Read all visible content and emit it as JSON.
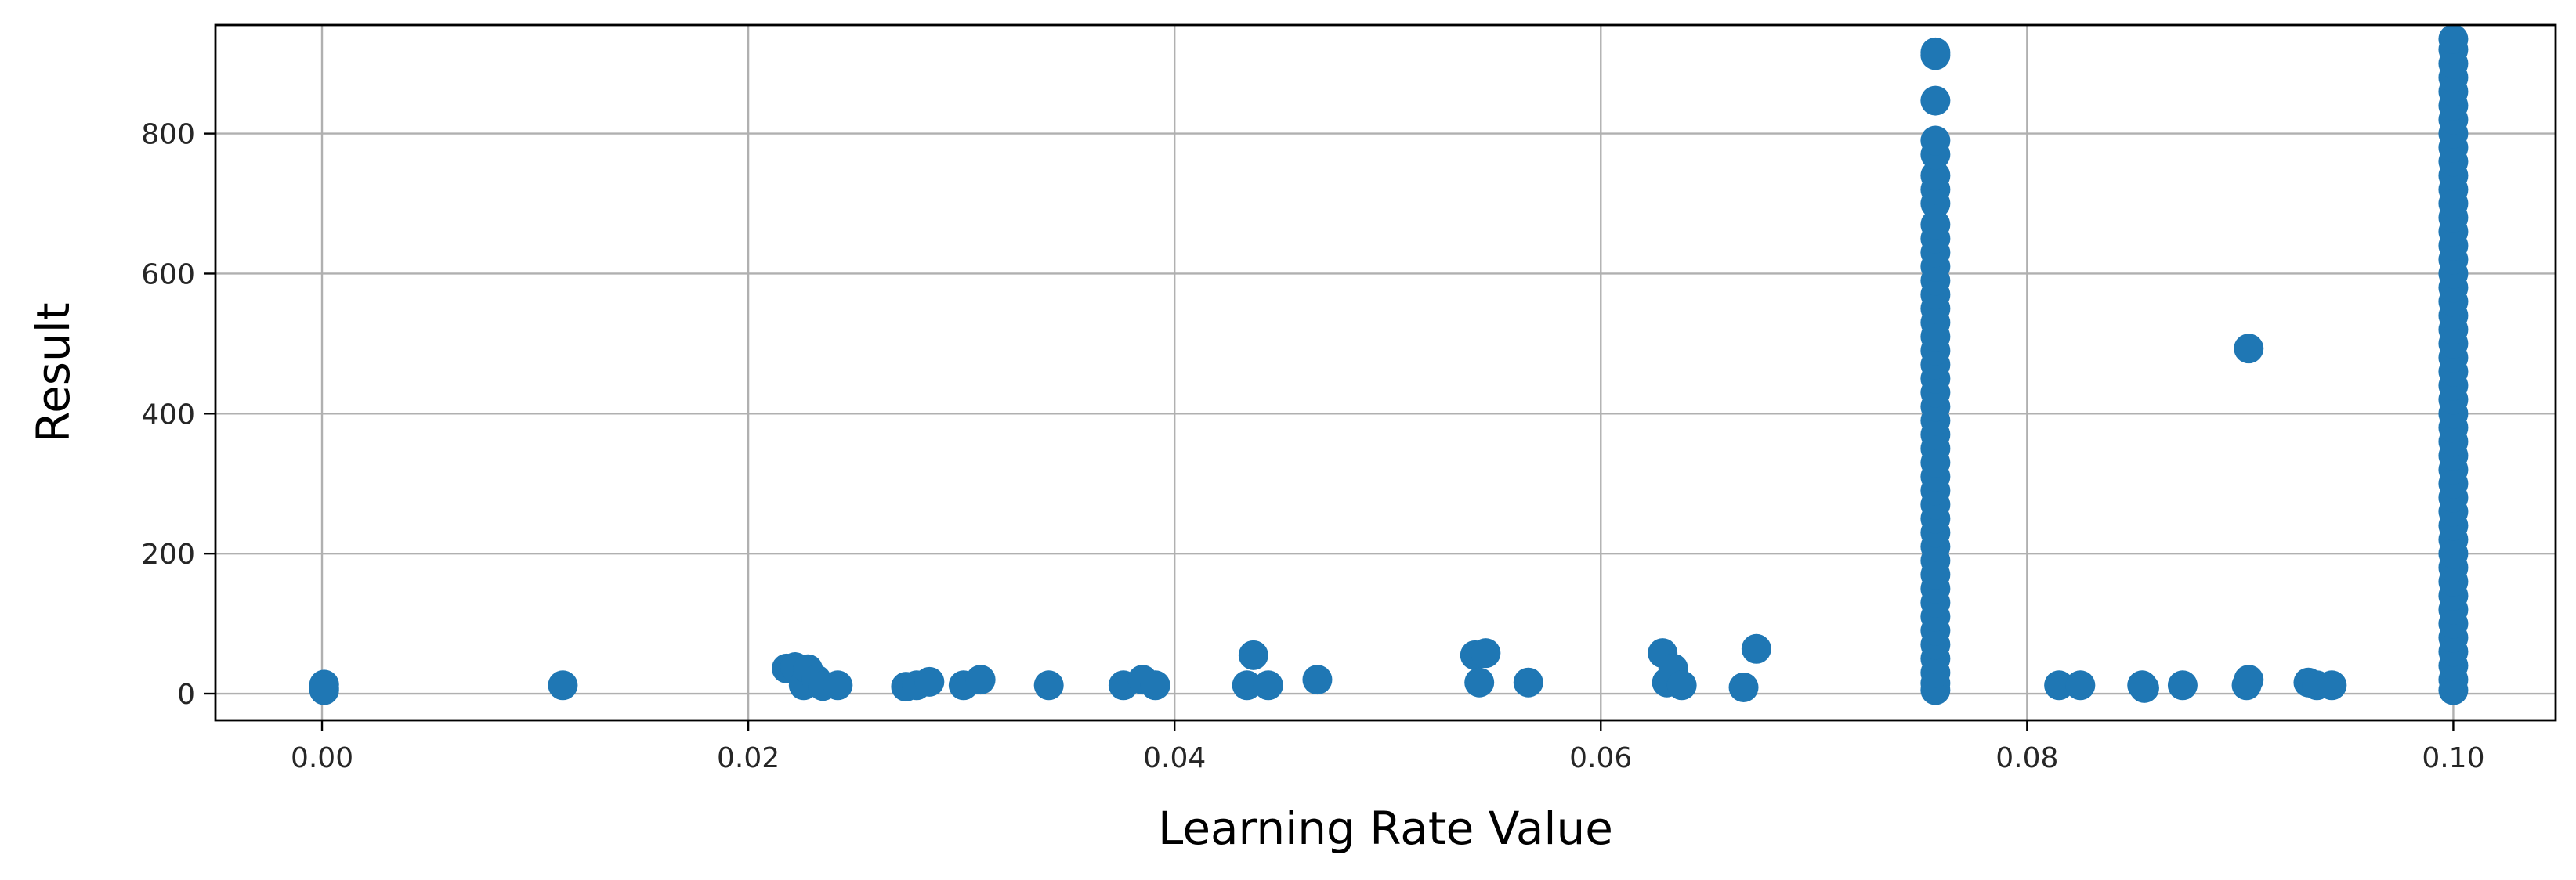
{
  "chart_data": {
    "type": "scatter",
    "title": "",
    "xlabel": "Learning Rate Value",
    "ylabel": "Result",
    "xlim": [
      -0.005,
      0.1048
    ],
    "ylim": [
      -38,
      955
    ],
    "xticks": [
      0.0,
      0.02,
      0.04,
      0.06,
      0.08,
      0.1
    ],
    "xtick_labels": [
      "0.00",
      "0.02",
      "0.04",
      "0.06",
      "0.08",
      "0.10"
    ],
    "yticks": [
      0,
      200,
      400,
      600,
      800
    ],
    "ytick_labels": [
      "0",
      "200",
      "400",
      "600",
      "800"
    ],
    "grid": true,
    "legend": "none",
    "marker_color": "#1f77b4",
    "series": [
      {
        "points": [
          [
            0.0001,
            8
          ],
          [
            0.0001,
            13
          ],
          [
            0.0001,
            5
          ],
          [
            0.0113,
            12
          ],
          [
            0.0218,
            36
          ],
          [
            0.0222,
            38
          ],
          [
            0.0226,
            12
          ],
          [
            0.0228,
            35
          ],
          [
            0.0232,
            20
          ],
          [
            0.0235,
            11
          ],
          [
            0.0242,
            12
          ],
          [
            0.0274,
            10
          ],
          [
            0.0279,
            12
          ],
          [
            0.0285,
            17
          ],
          [
            0.0301,
            12
          ],
          [
            0.0309,
            20
          ],
          [
            0.0341,
            12
          ],
          [
            0.0376,
            12
          ],
          [
            0.0385,
            20
          ],
          [
            0.0391,
            12
          ],
          [
            0.0434,
            12
          ],
          [
            0.0437,
            55
          ],
          [
            0.0444,
            12
          ],
          [
            0.0467,
            20
          ],
          [
            0.0541,
            55
          ],
          [
            0.0543,
            16
          ],
          [
            0.0546,
            58
          ],
          [
            0.0566,
            16
          ],
          [
            0.0629,
            58
          ],
          [
            0.0631,
            16
          ],
          [
            0.0634,
            36
          ],
          [
            0.0638,
            12
          ],
          [
            0.0667,
            9
          ],
          [
            0.0673,
            64
          ],
          [
            0.0757,
            5
          ],
          [
            0.0757,
            15
          ],
          [
            0.0757,
            30
          ],
          [
            0.0757,
            50
          ],
          [
            0.0757,
            70
          ],
          [
            0.0757,
            90
          ],
          [
            0.0757,
            110
          ],
          [
            0.0757,
            130
          ],
          [
            0.0757,
            150
          ],
          [
            0.0757,
            170
          ],
          [
            0.0757,
            190
          ],
          [
            0.0757,
            210
          ],
          [
            0.0757,
            230
          ],
          [
            0.0757,
            250
          ],
          [
            0.0757,
            270
          ],
          [
            0.0757,
            290
          ],
          [
            0.0757,
            310
          ],
          [
            0.0757,
            330
          ],
          [
            0.0757,
            350
          ],
          [
            0.0757,
            370
          ],
          [
            0.0757,
            390
          ],
          [
            0.0757,
            410
          ],
          [
            0.0757,
            430
          ],
          [
            0.0757,
            450
          ],
          [
            0.0757,
            470
          ],
          [
            0.0757,
            490
          ],
          [
            0.0757,
            510
          ],
          [
            0.0757,
            530
          ],
          [
            0.0757,
            550
          ],
          [
            0.0757,
            570
          ],
          [
            0.0757,
            590
          ],
          [
            0.0757,
            610
          ],
          [
            0.0757,
            630
          ],
          [
            0.0757,
            650
          ],
          [
            0.0757,
            670
          ],
          [
            0.0757,
            700
          ],
          [
            0.0757,
            720
          ],
          [
            0.0757,
            740
          ],
          [
            0.0757,
            770
          ],
          [
            0.0757,
            790
          ],
          [
            0.0757,
            847
          ],
          [
            0.0757,
            912
          ],
          [
            0.0757,
            916
          ],
          [
            0.0815,
            12
          ],
          [
            0.0825,
            12
          ],
          [
            0.0854,
            12
          ],
          [
            0.0855,
            8
          ],
          [
            0.0873,
            12
          ],
          [
            0.0903,
            12
          ],
          [
            0.0904,
            20
          ],
          [
            0.0904,
            493
          ],
          [
            0.0932,
            16
          ],
          [
            0.0936,
            12
          ],
          [
            0.0943,
            12
          ],
          [
            0.1,
            5
          ],
          [
            0.1,
            20
          ],
          [
            0.1,
            40
          ],
          [
            0.1,
            60
          ],
          [
            0.1,
            80
          ],
          [
            0.1,
            100
          ],
          [
            0.1,
            120
          ],
          [
            0.1,
            140
          ],
          [
            0.1,
            160
          ],
          [
            0.1,
            180
          ],
          [
            0.1,
            200
          ],
          [
            0.1,
            220
          ],
          [
            0.1,
            240
          ],
          [
            0.1,
            260
          ],
          [
            0.1,
            280
          ],
          [
            0.1,
            300
          ],
          [
            0.1,
            320
          ],
          [
            0.1,
            340
          ],
          [
            0.1,
            360
          ],
          [
            0.1,
            380
          ],
          [
            0.1,
            400
          ],
          [
            0.1,
            420
          ],
          [
            0.1,
            440
          ],
          [
            0.1,
            460
          ],
          [
            0.1,
            480
          ],
          [
            0.1,
            500
          ],
          [
            0.1,
            520
          ],
          [
            0.1,
            540
          ],
          [
            0.1,
            560
          ],
          [
            0.1,
            580
          ],
          [
            0.1,
            600
          ],
          [
            0.1,
            620
          ],
          [
            0.1,
            640
          ],
          [
            0.1,
            660
          ],
          [
            0.1,
            680
          ],
          [
            0.1,
            700
          ],
          [
            0.1,
            720
          ],
          [
            0.1,
            740
          ],
          [
            0.1,
            760
          ],
          [
            0.1,
            780
          ],
          [
            0.1,
            800
          ],
          [
            0.1,
            820
          ],
          [
            0.1,
            840
          ],
          [
            0.1,
            860
          ],
          [
            0.1,
            880
          ],
          [
            0.1,
            900
          ],
          [
            0.1,
            920
          ],
          [
            0.1,
            935
          ]
        ]
      }
    ]
  }
}
